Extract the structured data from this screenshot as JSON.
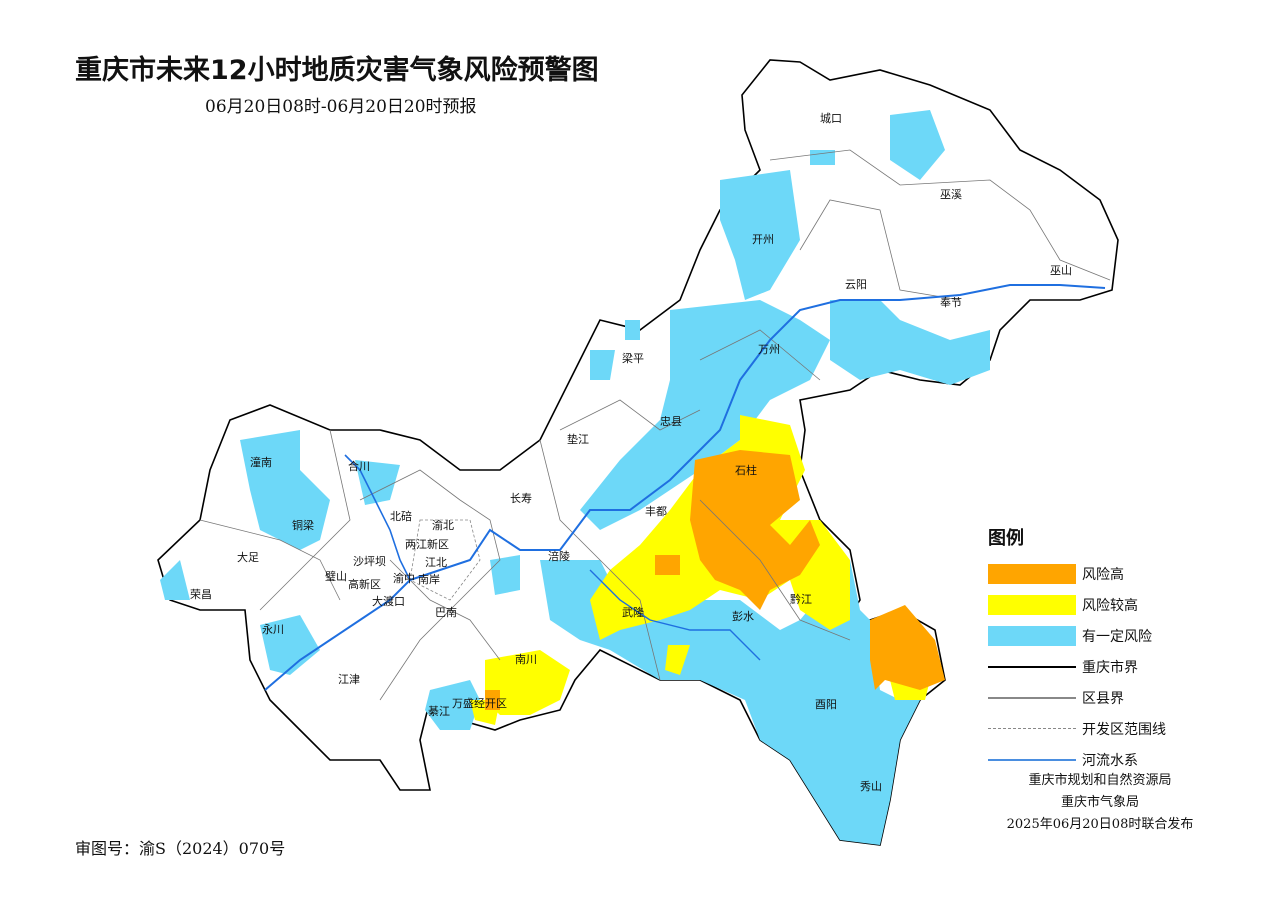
{
  "title": "重庆市未来12小时地质灾害气象风险预警图",
  "subtitle": "06月20日08时-06月20日20时预报",
  "approval_number": "审图号：渝S（2024）070号",
  "colors": {
    "high": "#FFA500",
    "higher": "#FFFF00",
    "some": "#6DD8F8",
    "river": "#1F6FE0",
    "boundary": "#000000",
    "district_boundary": "#888888"
  },
  "legend": {
    "title": "图例",
    "items": [
      {
        "label": "风险高",
        "type": "fill",
        "color": "#FFA500"
      },
      {
        "label": "风险较高",
        "type": "fill",
        "color": "#FFFF00"
      },
      {
        "label": "有一定风险",
        "type": "fill",
        "color": "#6DD8F8"
      },
      {
        "label": "重庆市界",
        "type": "line",
        "style": "solid-black"
      },
      {
        "label": "区县界",
        "type": "line",
        "style": "solid-gray"
      },
      {
        "label": "开发区范围线",
        "type": "line",
        "style": "dashed-gray"
      },
      {
        "label": "河流水系",
        "type": "line",
        "style": "solid-blue"
      }
    ]
  },
  "issuer": {
    "line1": "重庆市规划和自然资源局",
    "line2": "重庆市气象局",
    "line3": "2025年06月20日08时联合发布"
  },
  "districts": [
    "城口",
    "巫溪",
    "开州",
    "云阳",
    "奉节",
    "巫山",
    "万州",
    "梁平",
    "忠县",
    "垫江",
    "石柱",
    "丰都",
    "长寿",
    "涪陵",
    "潼南",
    "合川",
    "铜梁",
    "大足",
    "荣昌",
    "永川",
    "璧山",
    "北碚",
    "渝北",
    "两江新区",
    "沙坪坝",
    "江北",
    "渝中",
    "南岸",
    "高新区",
    "大渡口",
    "巴南",
    "江津",
    "綦江",
    "万盛经开区",
    "南川",
    "武隆",
    "彭水",
    "黔江",
    "酉阳",
    "秀山"
  ]
}
